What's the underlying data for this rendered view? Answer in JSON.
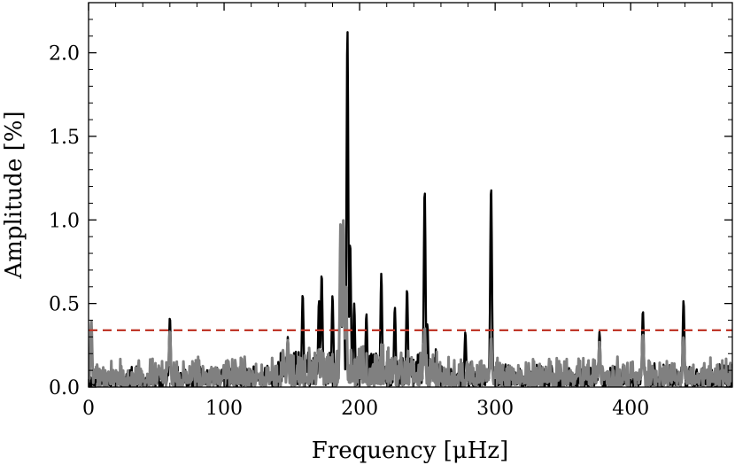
{
  "chart_data": {
    "type": "line",
    "xlabel": "Frequency [μHz]",
    "ylabel": "Amplitude [%]",
    "xlim": [
      0,
      475
    ],
    "ylim": [
      0,
      2.3
    ],
    "xticks": [
      0,
      100,
      200,
      300,
      400
    ],
    "xtick_labels": [
      "0",
      "100",
      "200",
      "300",
      "400"
    ],
    "yticks": [
      0.0,
      0.5,
      1.0,
      1.5,
      2.0
    ],
    "ytick_labels": [
      "0.0",
      "0.5",
      "1.0",
      "1.5",
      "2.0"
    ],
    "grid": false,
    "threshold": {
      "value": 0.34,
      "color": "#c0392b",
      "style": "dashed"
    },
    "series": [
      {
        "color": "#000000",
        "noise_level": 0.07,
        "peaks": [
          {
            "x": 60,
            "y": 0.42
          },
          {
            "x": 147,
            "y": 0.3
          },
          {
            "x": 158,
            "y": 0.56
          },
          {
            "x": 170,
            "y": 0.52
          },
          {
            "x": 172,
            "y": 0.68
          },
          {
            "x": 180,
            "y": 0.55
          },
          {
            "x": 186,
            "y": 0.98
          },
          {
            "x": 188,
            "y": 1.0
          },
          {
            "x": 191,
            "y": 2.15
          },
          {
            "x": 193,
            "y": 0.87
          },
          {
            "x": 196,
            "y": 0.5
          },
          {
            "x": 205,
            "y": 0.44
          },
          {
            "x": 216,
            "y": 0.68
          },
          {
            "x": 226,
            "y": 0.48
          },
          {
            "x": 235,
            "y": 0.59
          },
          {
            "x": 248,
            "y": 1.19
          },
          {
            "x": 250,
            "y": 0.38
          },
          {
            "x": 278,
            "y": 0.33
          },
          {
            "x": 297,
            "y": 1.21
          },
          {
            "x": 377,
            "y": 0.33
          },
          {
            "x": 409,
            "y": 0.46
          },
          {
            "x": 439,
            "y": 0.52
          }
        ]
      },
      {
        "color": "#808080",
        "noise_level": 0.085,
        "peaks": [
          {
            "x": 2,
            "y": 0.4
          },
          {
            "x": 60,
            "y": 0.34
          },
          {
            "x": 147,
            "y": 0.28
          },
          {
            "x": 186,
            "y": 1.0
          },
          {
            "x": 188,
            "y": 1.0
          },
          {
            "x": 190,
            "y": 0.6
          },
          {
            "x": 248,
            "y": 0.36
          },
          {
            "x": 297,
            "y": 0.3
          },
          {
            "x": 377,
            "y": 0.27
          },
          {
            "x": 409,
            "y": 0.32
          },
          {
            "x": 439,
            "y": 0.3
          }
        ]
      }
    ]
  }
}
